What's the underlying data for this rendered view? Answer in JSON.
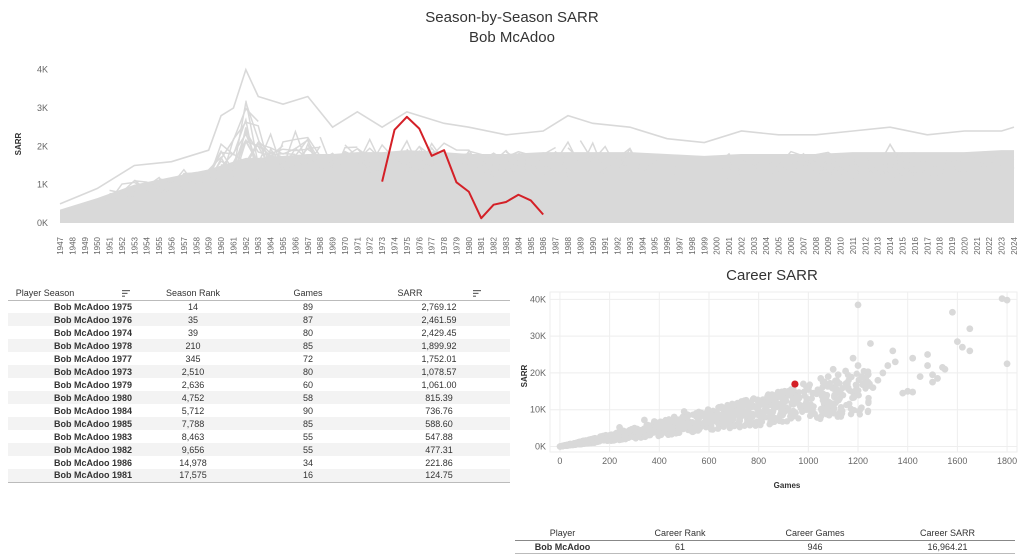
{
  "colors": {
    "highlight": "#d42027",
    "background_series": "#d9d9d9",
    "gridline": "#eeeeee",
    "axis_text": "#666666"
  },
  "chart_data": [
    {
      "type": "line",
      "title": "Season-by-Season SARR",
      "subtitle": "Bob McAdoo",
      "ylabel": "SARR",
      "xlabel": "",
      "x": [
        1947,
        1948,
        1949,
        1950,
        1951,
        1952,
        1953,
        1954,
        1955,
        1956,
        1957,
        1958,
        1959,
        1960,
        1961,
        1962,
        1963,
        1964,
        1965,
        1966,
        1967,
        1968,
        1969,
        1970,
        1971,
        1972,
        1973,
        1974,
        1975,
        1976,
        1977,
        1978,
        1979,
        1980,
        1981,
        1982,
        1983,
        1984,
        1985,
        1986,
        1987,
        1988,
        1989,
        1990,
        1991,
        1992,
        1993,
        1994,
        1995,
        1996,
        1997,
        1998,
        1999,
        2000,
        2001,
        2002,
        2003,
        2004,
        2005,
        2006,
        2007,
        2008,
        2009,
        2010,
        2011,
        2012,
        2013,
        2014,
        2015,
        2016,
        2017,
        2018,
        2019,
        2020,
        2021,
        2022,
        2023,
        2024
      ],
      "ylim": [
        0,
        4200
      ],
      "yticks": [
        0,
        1000,
        2000,
        3000,
        4000
      ],
      "ytick_labels": [
        "0K",
        "1K",
        "2K",
        "3K",
        "4K"
      ],
      "grid": false,
      "background_series_note": "",
      "background_envelope": {
        "x": [
          1947,
          1950,
          1953,
          1956,
          1959,
          1960,
          1961,
          1962,
          1963,
          1965,
          1967,
          1969,
          1971,
          1973,
          1975,
          1978,
          1980,
          1983,
          1986,
          1988,
          1990,
          1993,
          1996,
          1999,
          2002,
          2005,
          2008,
          2011,
          2014,
          2017,
          2020,
          2023,
          2024
        ],
        "upper": [
          500,
          900,
          1500,
          1600,
          1900,
          2800,
          3000,
          4000,
          3300,
          3100,
          3300,
          2500,
          2900,
          2500,
          2900,
          2600,
          2500,
          2300,
          2400,
          2800,
          2600,
          2500,
          2200,
          2100,
          2400,
          2300,
          2300,
          2400,
          2500,
          2300,
          2400,
          2400,
          2500
        ],
        "dense": [
          350,
          650,
          1000,
          1200,
          1400,
          1500,
          1600,
          1700,
          1700,
          1750,
          1800,
          1800,
          1850,
          1850,
          1900,
          1850,
          1800,
          1800,
          1850,
          1850,
          1850,
          1850,
          1800,
          1750,
          1800,
          1800,
          1800,
          1850,
          1850,
          1850,
          1850,
          1900,
          1900
        ]
      },
      "series": [
        {
          "name": "Bob McAdoo",
          "x": [
            1973,
            1974,
            1975,
            1976,
            1977,
            1978,
            1979,
            1980,
            1981,
            1982,
            1983,
            1984,
            1985,
            1986
          ],
          "values": [
            1078.57,
            2429.45,
            2769.12,
            2461.59,
            1752.01,
            1899.92,
            1061.0,
            815.39,
            124.75,
            477.31,
            547.88,
            736.76,
            588.6,
            221.86
          ]
        }
      ]
    },
    {
      "type": "scatter",
      "title": "Career SARR",
      "xlabel": "Games",
      "ylabel": "SARR",
      "xlim": [
        -40,
        1840
      ],
      "ylim": [
        -1500,
        42000
      ],
      "xticks": [
        0,
        200,
        400,
        600,
        800,
        1000,
        1200,
        1400,
        1600,
        1800
      ],
      "yticks": [
        0,
        10000,
        20000,
        30000,
        40000
      ],
      "ytick_labels": [
        "0K",
        "10K",
        "20K",
        "30K",
        "40K"
      ],
      "grid": true,
      "highlight": {
        "name": "Bob McAdoo",
        "x": 946,
        "y": 16964.21
      },
      "outliers": [
        [
          1200,
          38500
        ],
        [
          1780,
          40200
        ],
        [
          1800,
          39800
        ],
        [
          1800,
          22500
        ],
        [
          1650,
          32000
        ],
        [
          1650,
          26000
        ],
        [
          1620,
          27000
        ],
        [
          1580,
          36500
        ],
        [
          1550,
          21000
        ],
        [
          1520,
          18500
        ],
        [
          1500,
          17500
        ],
        [
          1480,
          22000
        ],
        [
          1450,
          19000
        ],
        [
          1420,
          24000
        ],
        [
          1400,
          15000
        ],
        [
          1380,
          14500
        ],
        [
          1350,
          23000
        ],
        [
          1340,
          26000
        ],
        [
          1320,
          22000
        ],
        [
          1300,
          20000
        ],
        [
          1280,
          18000
        ],
        [
          1260,
          16000
        ],
        [
          1250,
          28000
        ],
        [
          1240,
          17500
        ],
        [
          1220,
          17000
        ],
        [
          1200,
          22000
        ],
        [
          1180,
          24000
        ],
        [
          1160,
          16000
        ],
        [
          1150,
          20500
        ],
        [
          1120,
          19500
        ],
        [
          1100,
          21000
        ],
        [
          1080,
          19000
        ],
        [
          1050,
          18500
        ],
        [
          1020,
          14500
        ],
        [
          1000,
          15500
        ],
        [
          980,
          17000
        ],
        [
          960,
          13500
        ],
        [
          940,
          12000
        ],
        [
          900,
          14500
        ],
        [
          880,
          11500
        ],
        [
          860,
          13000
        ],
        [
          820,
          12000
        ],
        [
          800,
          11000
        ],
        [
          780,
          13000
        ],
        [
          750,
          9500
        ],
        [
          720,
          11500
        ],
        [
          700,
          8500
        ],
        [
          680,
          8000
        ],
        [
          650,
          10500
        ],
        [
          620,
          7500
        ],
        [
          600,
          8200
        ],
        [
          560,
          6500
        ],
        [
          520,
          6000
        ],
        [
          500,
          9500
        ],
        [
          480,
          5500
        ],
        [
          460,
          8000
        ],
        [
          440,
          6200
        ],
        [
          420,
          4800
        ],
        [
          400,
          5200
        ],
        [
          380,
          6800
        ],
        [
          360,
          4200
        ],
        [
          340,
          7200
        ],
        [
          320,
          3600
        ],
        [
          300,
          5000
        ],
        [
          280,
          4200
        ],
        [
          260,
          2800
        ],
        [
          240,
          5200
        ],
        [
          220,
          2400
        ],
        [
          200,
          3000
        ],
        [
          180,
          2000
        ],
        [
          160,
          1800
        ],
        [
          1540,
          21500
        ],
        [
          1480,
          25000
        ],
        [
          1500,
          19500
        ],
        [
          1600,
          28500
        ],
        [
          1420,
          14800
        ]
      ]
    }
  ],
  "season_table": {
    "headers": [
      "Player Season",
      "Season Rank",
      "Games",
      "SARR"
    ],
    "rows": [
      [
        "Bob McAdoo 1975",
        "14",
        "89",
        "2,769.12"
      ],
      [
        "Bob McAdoo 1976",
        "35",
        "87",
        "2,461.59"
      ],
      [
        "Bob McAdoo 1974",
        "39",
        "80",
        "2,429.45"
      ],
      [
        "Bob McAdoo 1978",
        "210",
        "85",
        "1,899.92"
      ],
      [
        "Bob McAdoo 1977",
        "345",
        "72",
        "1,752.01"
      ],
      [
        "Bob McAdoo 1973",
        "2,510",
        "80",
        "1,078.57"
      ],
      [
        "Bob McAdoo 1979",
        "2,636",
        "60",
        "1,061.00"
      ],
      [
        "Bob McAdoo 1980",
        "4,752",
        "58",
        "815.39"
      ],
      [
        "Bob McAdoo 1984",
        "5,712",
        "90",
        "736.76"
      ],
      [
        "Bob McAdoo 1985",
        "7,788",
        "85",
        "588.60"
      ],
      [
        "Bob McAdoo 1983",
        "8,463",
        "55",
        "547.88"
      ],
      [
        "Bob McAdoo 1982",
        "9,656",
        "55",
        "477.31"
      ],
      [
        "Bob McAdoo 1986",
        "14,978",
        "34",
        "221.86"
      ],
      [
        "Bob McAdoo 1981",
        "17,575",
        "16",
        "124.75"
      ]
    ]
  },
  "career_table": {
    "headers": [
      "Player",
      "Career Rank",
      "Career Games",
      "Career SARR"
    ],
    "row": [
      "Bob McAdoo",
      "61",
      "946",
      "16,964.21"
    ]
  }
}
